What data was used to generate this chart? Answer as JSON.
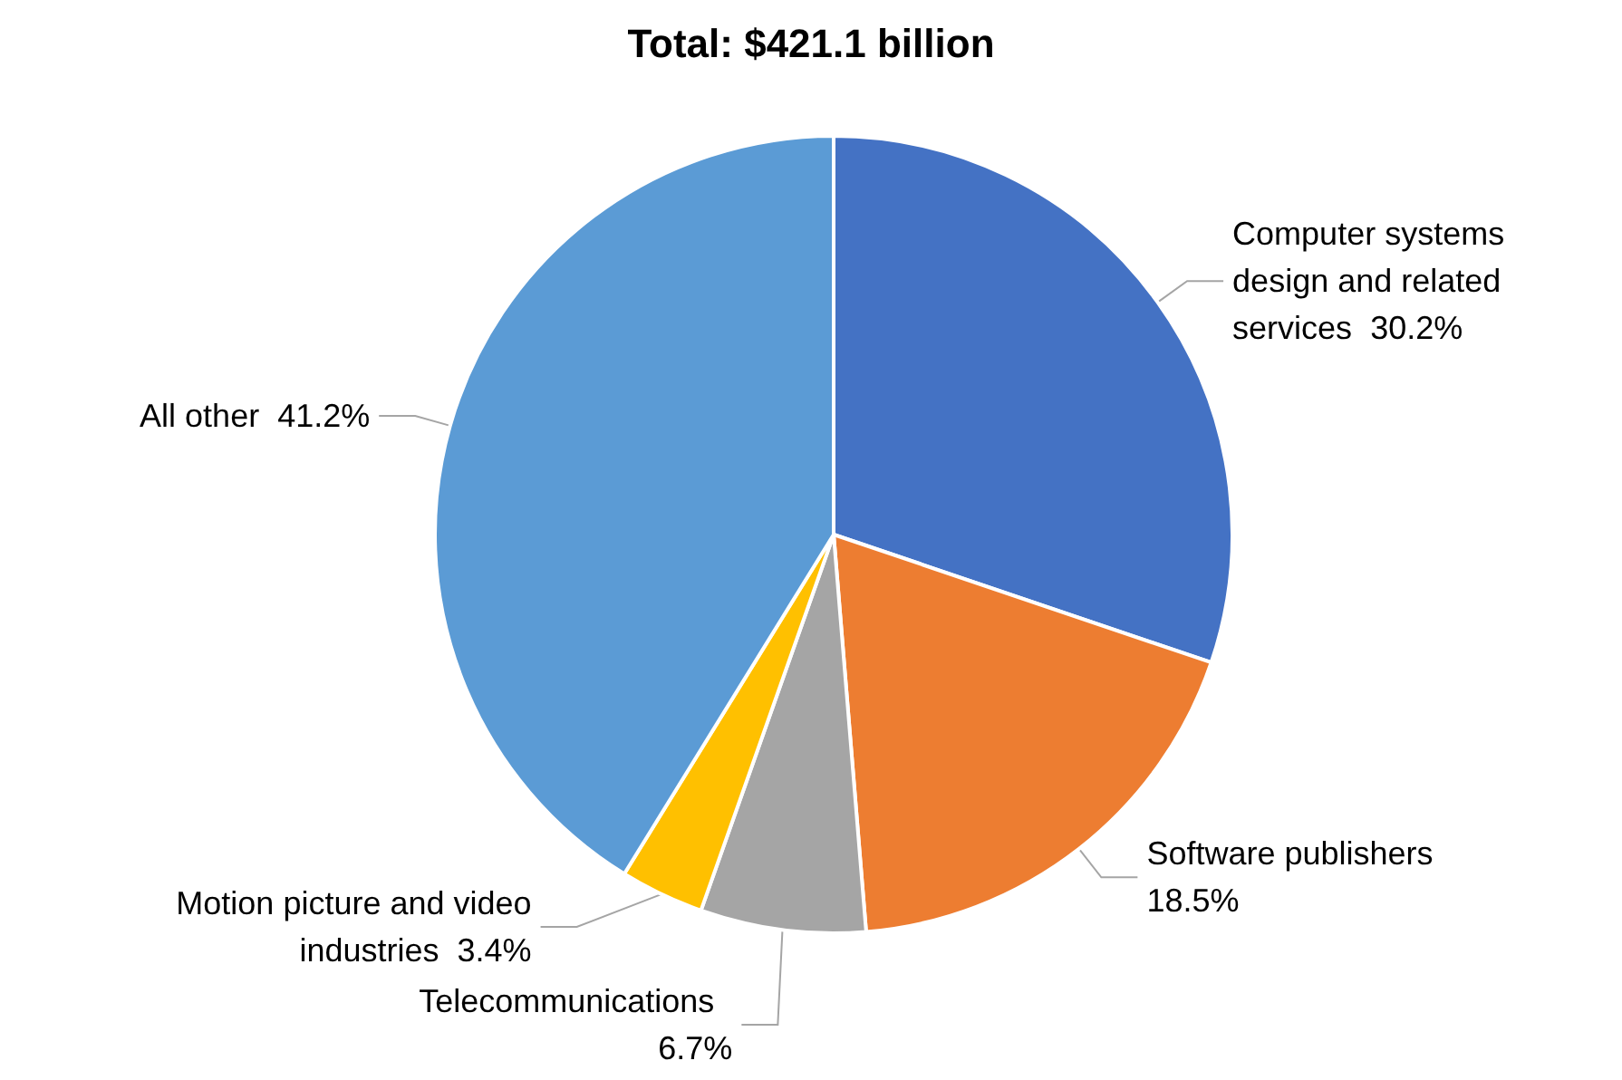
{
  "chart_data": {
    "type": "pie",
    "title": "Total: $421.1 billion",
    "categories": [
      "Computer systems design and related services",
      "Software publishers",
      "Telecommunications",
      "Motion picture and video industries",
      "All other"
    ],
    "values": [
      30.2,
      18.5,
      6.7,
      3.4,
      41.2
    ],
    "colors": [
      "#4472c4",
      "#ed7d31",
      "#a5a5a5",
      "#ffc000",
      "#5b9bd5"
    ],
    "value_labels": [
      "30.2%",
      "18.5%",
      "6.7%",
      "3.4%",
      "41.2%"
    ],
    "legend": false
  }
}
